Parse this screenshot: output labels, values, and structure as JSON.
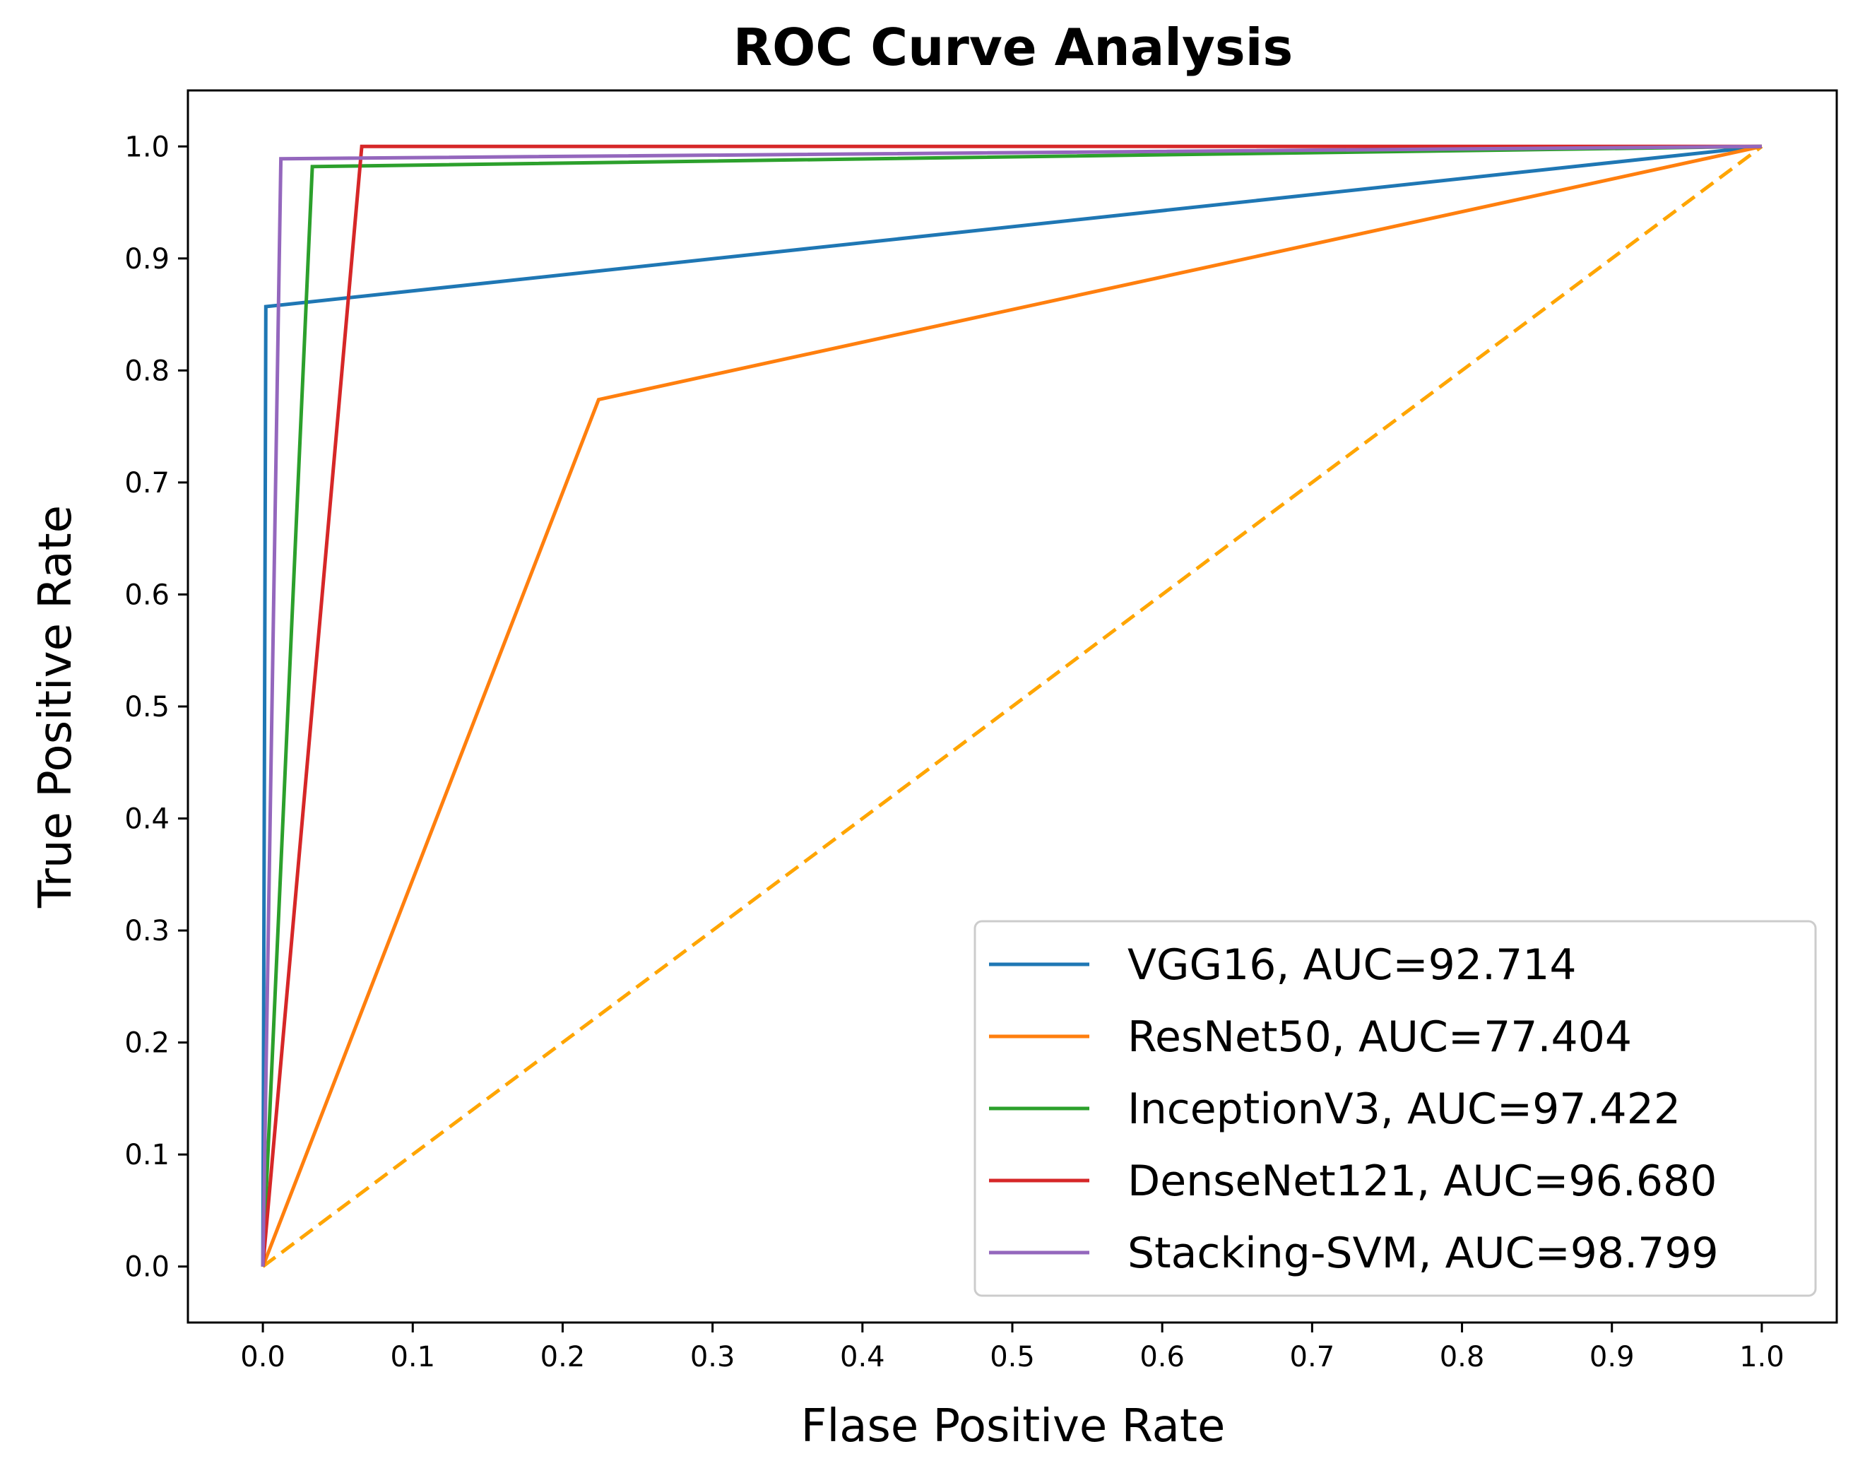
{
  "chart_data": {
    "type": "line",
    "title": "ROC Curve Analysis",
    "xlabel": "Flase Positive Rate",
    "ylabel": "True Positive Rate",
    "xlim": [
      -0.05,
      1.05
    ],
    "ylim": [
      -0.05,
      1.05
    ],
    "xticks": [
      0.0,
      0.1,
      0.2,
      0.3,
      0.4,
      0.5,
      0.6,
      0.7,
      0.8,
      0.9,
      1.0
    ],
    "xtick_labels": [
      "0.0",
      "0.1",
      "0.2",
      "0.3",
      "0.4",
      "0.5",
      "0.6",
      "0.7",
      "0.8",
      "0.9",
      "1.0"
    ],
    "yticks": [
      0.0,
      0.1,
      0.2,
      0.3,
      0.4,
      0.5,
      0.6,
      0.7,
      0.8,
      0.9,
      1.0
    ],
    "ytick_labels": [
      "0.0",
      "0.1",
      "0.2",
      "0.3",
      "0.4",
      "0.5",
      "0.6",
      "0.7",
      "0.8",
      "0.9",
      "1.0"
    ],
    "grid": false,
    "legend_position": "bottom-right",
    "series": [
      {
        "name": "VGG16",
        "label": "VGG16, AUC=92.714",
        "color": "#1f77b4",
        "x": [
          0.0,
          0.002,
          1.0
        ],
        "y": [
          0.0,
          0.857,
          1.0
        ]
      },
      {
        "name": "ResNet50",
        "label": "ResNet50, AUC=77.404",
        "color": "#ff7f0e",
        "x": [
          0.0,
          0.224,
          1.0
        ],
        "y": [
          0.0,
          0.774,
          1.0
        ]
      },
      {
        "name": "InceptionV3",
        "label": "InceptionV3, AUC=97.422",
        "color": "#2ca02c",
        "x": [
          0.0,
          0.033,
          1.0
        ],
        "y": [
          0.0,
          0.982,
          1.0
        ]
      },
      {
        "name": "DenseNet121",
        "label": "DenseNet121, AUC=96.680",
        "color": "#d62728",
        "x": [
          0.0,
          0.066,
          1.0
        ],
        "y": [
          0.0,
          1.0,
          1.0
        ]
      },
      {
        "name": "Stacking-SVM",
        "label": "Stacking-SVM, AUC=98.799",
        "color": "#9467bd",
        "x": [
          0.0,
          0.012,
          1.0
        ],
        "y": [
          0.0,
          0.989,
          1.0
        ]
      }
    ],
    "reference_line": {
      "x": [
        0.0,
        1.0
      ],
      "y": [
        0.0,
        1.0
      ],
      "color": "#ffa500",
      "style": "dashed"
    }
  }
}
